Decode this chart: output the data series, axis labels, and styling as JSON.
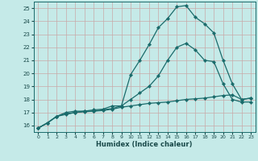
{
  "xlabel": "Humidex (Indice chaleur)",
  "xlim": [
    -0.5,
    23.5
  ],
  "ylim": [
    15.5,
    25.5
  ],
  "xticks": [
    0,
    1,
    2,
    3,
    4,
    5,
    6,
    7,
    8,
    9,
    10,
    11,
    12,
    13,
    14,
    15,
    16,
    17,
    18,
    19,
    20,
    21,
    22,
    23
  ],
  "yticks": [
    16,
    17,
    18,
    19,
    20,
    21,
    22,
    23,
    24,
    25
  ],
  "bg_color": "#c5eae8",
  "grid_color": "#c8a8a8",
  "line_color": "#1a6b6b",
  "line1_x": [
    0,
    1,
    2,
    3,
    4,
    5,
    6,
    7,
    8,
    9,
    10,
    11,
    12,
    13,
    14,
    15,
    16,
    17,
    18,
    19,
    20,
    21,
    22,
    23
  ],
  "line1_y": [
    15.8,
    16.2,
    16.7,
    16.85,
    17.0,
    17.05,
    17.1,
    17.15,
    17.25,
    17.4,
    17.5,
    17.6,
    17.7,
    17.75,
    17.8,
    17.9,
    18.0,
    18.05,
    18.1,
    18.2,
    18.3,
    18.35,
    18.0,
    18.1
  ],
  "line2_x": [
    0,
    1,
    2,
    3,
    4,
    5,
    6,
    7,
    8,
    9,
    10,
    11,
    12,
    13,
    14,
    15,
    16,
    17,
    18,
    19,
    20,
    21,
    22,
    23
  ],
  "line2_y": [
    15.8,
    16.2,
    16.7,
    16.9,
    17.0,
    17.1,
    17.1,
    17.2,
    17.3,
    17.5,
    18.0,
    18.5,
    19.0,
    19.8,
    21.0,
    22.0,
    22.3,
    21.8,
    21.0,
    20.9,
    19.2,
    18.0,
    17.8,
    17.8
  ],
  "line3_x": [
    0,
    1,
    2,
    3,
    4,
    5,
    6,
    7,
    8,
    9,
    10,
    11,
    12,
    13,
    14,
    15,
    16,
    17,
    18,
    19,
    20,
    21,
    22,
    23
  ],
  "line3_y": [
    15.8,
    16.2,
    16.7,
    17.0,
    17.1,
    17.1,
    17.2,
    17.25,
    17.5,
    17.5,
    19.9,
    21.0,
    22.2,
    23.5,
    24.2,
    25.1,
    25.2,
    24.3,
    23.8,
    23.1,
    21.0,
    19.2,
    18.0,
    18.1
  ]
}
